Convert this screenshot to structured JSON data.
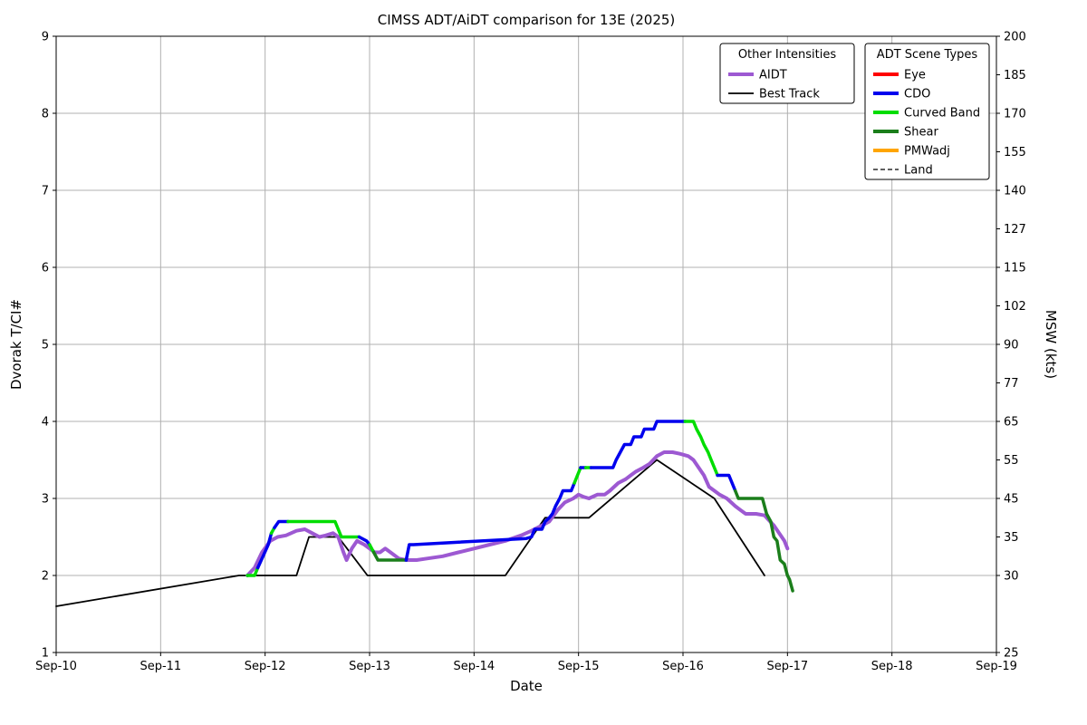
{
  "chart_data": {
    "type": "line",
    "title": "CIMSS ADT/AiDT comparison for 13E (2025)",
    "xlabel": "Date",
    "ylabel_left": "Dvorak T/CI#",
    "ylabel_right": "MSW (kts)",
    "grid": true,
    "grid_color": "#b0b0b0",
    "x_range": [
      10,
      19
    ],
    "y_range_left": [
      1,
      9
    ],
    "x_ticks": [
      {
        "x": 10,
        "label": "Sep-10"
      },
      {
        "x": 11,
        "label": "Sep-11"
      },
      {
        "x": 12,
        "label": "Sep-12"
      },
      {
        "x": 13,
        "label": "Sep-13"
      },
      {
        "x": 14,
        "label": "Sep-14"
      },
      {
        "x": 15,
        "label": "Sep-15"
      },
      {
        "x": 16,
        "label": "Sep-16"
      },
      {
        "x": 17,
        "label": "Sep-17"
      },
      {
        "x": 18,
        "label": "Sep-18"
      },
      {
        "x": 19,
        "label": "Sep-19"
      }
    ],
    "y_ticks_left": [
      {
        "t": 1,
        "label": "1"
      },
      {
        "t": 2,
        "label": "2"
      },
      {
        "t": 3,
        "label": "3"
      },
      {
        "t": 4,
        "label": "4"
      },
      {
        "t": 5,
        "label": "5"
      },
      {
        "t": 6,
        "label": "6"
      },
      {
        "t": 7,
        "label": "7"
      },
      {
        "t": 8,
        "label": "8"
      },
      {
        "t": 9,
        "label": "9"
      }
    ],
    "y_ticks_right": [
      {
        "t": 1.0,
        "label": "25"
      },
      {
        "t": 2.0,
        "label": "30"
      },
      {
        "t": 2.5,
        "label": "35"
      },
      {
        "t": 3.0,
        "label": "45"
      },
      {
        "t": 3.5,
        "label": "55"
      },
      {
        "t": 4.0,
        "label": "65"
      },
      {
        "t": 4.5,
        "label": "77"
      },
      {
        "t": 5.0,
        "label": "90"
      },
      {
        "t": 5.5,
        "label": "102"
      },
      {
        "t": 6.0,
        "label": "115"
      },
      {
        "t": 6.5,
        "label": "127"
      },
      {
        "t": 7.0,
        "label": "140"
      },
      {
        "t": 7.5,
        "label": "155"
      },
      {
        "t": 8.0,
        "label": "170"
      },
      {
        "t": 8.5,
        "label": "185"
      },
      {
        "t": 9.0,
        "label": "200"
      }
    ],
    "legends": [
      {
        "title": "Other Intensities",
        "items": [
          {
            "label": "AIDT",
            "color": "#9d59d2",
            "width": 4,
            "dash": "solid"
          },
          {
            "label": "Best Track",
            "color": "#000000",
            "width": 1.8,
            "dash": "solid"
          }
        ]
      },
      {
        "title": "ADT Scene Types",
        "items": [
          {
            "label": "Eye",
            "color": "#ff0000",
            "width": 4,
            "dash": "solid"
          },
          {
            "label": "CDO",
            "color": "#0000ee",
            "width": 4,
            "dash": "solid"
          },
          {
            "label": "Curved Band",
            "color": "#00dd00",
            "width": 4,
            "dash": "solid"
          },
          {
            "label": "Shear",
            "color": "#1b7e1b",
            "width": 4,
            "dash": "solid"
          },
          {
            "label": "PMWadj",
            "color": "#ffa500",
            "width": 4,
            "dash": "solid"
          },
          {
            "label": "Land",
            "color": "#000000",
            "width": 1.2,
            "dash": "dashed"
          }
        ]
      }
    ],
    "series": [
      {
        "name": "Best Track",
        "color": "#000000",
        "width": 1.8,
        "points": [
          [
            10.0,
            1.6
          ],
          [
            11.75,
            2.0
          ],
          [
            12.3,
            2.0
          ],
          [
            12.42,
            2.5
          ],
          [
            12.7,
            2.5
          ],
          [
            12.98,
            2.0
          ],
          [
            14.3,
            2.0
          ],
          [
            14.68,
            2.75
          ],
          [
            15.1,
            2.75
          ],
          [
            15.75,
            3.5
          ],
          [
            16.3,
            3.0
          ],
          [
            16.78,
            2.0
          ]
        ]
      },
      {
        "name": "AIDT",
        "color": "#9d59d2",
        "width": 4,
        "points": [
          [
            11.83,
            2.0
          ],
          [
            11.9,
            2.1
          ],
          [
            11.97,
            2.3
          ],
          [
            12.05,
            2.45
          ],
          [
            12.12,
            2.5
          ],
          [
            12.2,
            2.52
          ],
          [
            12.3,
            2.58
          ],
          [
            12.38,
            2.6
          ],
          [
            12.45,
            2.55
          ],
          [
            12.52,
            2.5
          ],
          [
            12.58,
            2.52
          ],
          [
            12.65,
            2.55
          ],
          [
            12.7,
            2.5
          ],
          [
            12.75,
            2.3
          ],
          [
            12.78,
            2.2
          ],
          [
            12.83,
            2.35
          ],
          [
            12.88,
            2.45
          ],
          [
            12.95,
            2.4
          ],
          [
            13.0,
            2.35
          ],
          [
            13.05,
            2.3
          ],
          [
            13.1,
            2.3
          ],
          [
            13.15,
            2.35
          ],
          [
            13.2,
            2.3
          ],
          [
            13.28,
            2.22
          ],
          [
            13.35,
            2.2
          ],
          [
            13.45,
            2.2
          ],
          [
            13.55,
            2.22
          ],
          [
            13.7,
            2.25
          ],
          [
            13.85,
            2.3
          ],
          [
            14.0,
            2.35
          ],
          [
            14.15,
            2.4
          ],
          [
            14.3,
            2.45
          ],
          [
            14.45,
            2.52
          ],
          [
            14.55,
            2.58
          ],
          [
            14.65,
            2.65
          ],
          [
            14.72,
            2.7
          ],
          [
            14.8,
            2.85
          ],
          [
            14.87,
            2.95
          ],
          [
            14.95,
            3.0
          ],
          [
            15.0,
            3.05
          ],
          [
            15.05,
            3.02
          ],
          [
            15.1,
            3.0
          ],
          [
            15.18,
            3.05
          ],
          [
            15.25,
            3.05
          ],
          [
            15.3,
            3.1
          ],
          [
            15.38,
            3.2
          ],
          [
            15.45,
            3.25
          ],
          [
            15.5,
            3.3
          ],
          [
            15.55,
            3.35
          ],
          [
            15.62,
            3.4
          ],
          [
            15.68,
            3.45
          ],
          [
            15.75,
            3.55
          ],
          [
            15.82,
            3.6
          ],
          [
            15.9,
            3.6
          ],
          [
            15.97,
            3.58
          ],
          [
            16.05,
            3.55
          ],
          [
            16.1,
            3.5
          ],
          [
            16.15,
            3.4
          ],
          [
            16.2,
            3.3
          ],
          [
            16.25,
            3.15
          ],
          [
            16.3,
            3.1
          ],
          [
            16.35,
            3.05
          ],
          [
            16.42,
            3.0
          ],
          [
            16.5,
            2.9
          ],
          [
            16.55,
            2.85
          ],
          [
            16.6,
            2.8
          ],
          [
            16.7,
            2.8
          ],
          [
            16.78,
            2.78
          ],
          [
            16.82,
            2.72
          ],
          [
            16.87,
            2.65
          ],
          [
            16.92,
            2.55
          ],
          [
            16.97,
            2.45
          ],
          [
            17.0,
            2.35
          ]
        ]
      },
      {
        "name": "ADT",
        "width": 3.5,
        "segments": [
          {
            "scene": "Curved Band",
            "color": "#00dd00",
            "points": [
              [
                11.83,
                2.0
              ],
              [
                11.9,
                2.0
              ],
              [
                11.93,
                2.1
              ]
            ]
          },
          {
            "scene": "CDO",
            "color": "#0000ee",
            "points": [
              [
                11.93,
                2.1
              ],
              [
                11.98,
                2.25
              ],
              [
                12.03,
                2.4
              ],
              [
                12.06,
                2.55
              ]
            ]
          },
          {
            "scene": "Curved Band",
            "color": "#00dd00",
            "points": [
              [
                12.06,
                2.55
              ],
              [
                12.09,
                2.62
              ]
            ]
          },
          {
            "scene": "CDO",
            "color": "#0000ee",
            "points": [
              [
                12.09,
                2.62
              ],
              [
                12.13,
                2.7
              ],
              [
                12.22,
                2.7
              ]
            ]
          },
          {
            "scene": "Curved Band",
            "color": "#00dd00",
            "points": [
              [
                12.22,
                2.7
              ],
              [
                12.67,
                2.7
              ],
              [
                12.7,
                2.6
              ],
              [
                12.73,
                2.5
              ],
              [
                12.9,
                2.5
              ]
            ]
          },
          {
            "scene": "CDO",
            "color": "#0000ee",
            "points": [
              [
                12.9,
                2.5
              ],
              [
                12.97,
                2.45
              ],
              [
                13.0,
                2.4
              ]
            ]
          },
          {
            "scene": "Curved Band",
            "color": "#00dd00",
            "points": [
              [
                13.0,
                2.4
              ],
              [
                13.04,
                2.3
              ]
            ]
          },
          {
            "scene": "Shear",
            "color": "#1b7e1b",
            "points": [
              [
                13.04,
                2.3
              ],
              [
                13.08,
                2.2
              ],
              [
                13.35,
                2.2
              ]
            ]
          },
          {
            "scene": "CDO",
            "color": "#0000ee",
            "points": [
              [
                13.35,
                2.2
              ],
              [
                13.38,
                2.4
              ],
              [
                13.42,
                2.4
              ],
              [
                14.5,
                2.48
              ],
              [
                14.55,
                2.5
              ],
              [
                14.58,
                2.6
              ],
              [
                14.65,
                2.6
              ],
              [
                14.68,
                2.7
              ],
              [
                14.72,
                2.75
              ],
              [
                14.75,
                2.8
              ],
              [
                14.78,
                2.9
              ],
              [
                14.82,
                3.0
              ],
              [
                14.85,
                3.1
              ],
              [
                14.93,
                3.1
              ],
              [
                14.96,
                3.2
              ]
            ]
          },
          {
            "scene": "Curved Band",
            "color": "#00dd00",
            "points": [
              [
                14.96,
                3.2
              ],
              [
                14.99,
                3.3
              ],
              [
                15.02,
                3.4
              ]
            ]
          },
          {
            "scene": "CDO",
            "color": "#0000ee",
            "points": [
              [
                15.02,
                3.4
              ],
              [
                15.07,
                3.4
              ]
            ]
          },
          {
            "scene": "Curved Band",
            "color": "#00dd00",
            "points": [
              [
                15.07,
                3.4
              ],
              [
                15.12,
                3.4
              ]
            ]
          },
          {
            "scene": "CDO",
            "color": "#0000ee",
            "points": [
              [
                15.12,
                3.4
              ],
              [
                15.33,
                3.4
              ],
              [
                15.36,
                3.5
              ],
              [
                15.4,
                3.6
              ],
              [
                15.44,
                3.7
              ],
              [
                15.5,
                3.7
              ],
              [
                15.53,
                3.8
              ],
              [
                15.6,
                3.8
              ],
              [
                15.63,
                3.9
              ],
              [
                15.72,
                3.9
              ],
              [
                15.75,
                4.0
              ],
              [
                16.02,
                4.0
              ]
            ]
          },
          {
            "scene": "Curved Band",
            "color": "#00dd00",
            "points": [
              [
                16.02,
                4.0
              ],
              [
                16.1,
                4.0
              ],
              [
                16.13,
                3.9
              ],
              [
                16.17,
                3.8
              ],
              [
                16.2,
                3.7
              ],
              [
                16.24,
                3.6
              ],
              [
                16.27,
                3.5
              ],
              [
                16.3,
                3.4
              ],
              [
                16.33,
                3.3
              ]
            ]
          },
          {
            "scene": "CDO",
            "color": "#0000ee",
            "points": [
              [
                16.33,
                3.3
              ],
              [
                16.44,
                3.3
              ],
              [
                16.47,
                3.2
              ],
              [
                16.5,
                3.1
              ]
            ]
          },
          {
            "scene": "Shear",
            "color": "#1b7e1b",
            "points": [
              [
                16.5,
                3.1
              ],
              [
                16.53,
                3.0
              ],
              [
                16.76,
                3.0
              ],
              [
                16.8,
                2.8
              ],
              [
                16.84,
                2.7
              ],
              [
                16.87,
                2.5
              ],
              [
                16.9,
                2.45
              ],
              [
                16.93,
                2.2
              ],
              [
                16.97,
                2.15
              ],
              [
                17.0,
                2.0
              ],
              [
                17.02,
                1.95
              ],
              [
                17.05,
                1.8
              ]
            ]
          }
        ]
      }
    ]
  }
}
